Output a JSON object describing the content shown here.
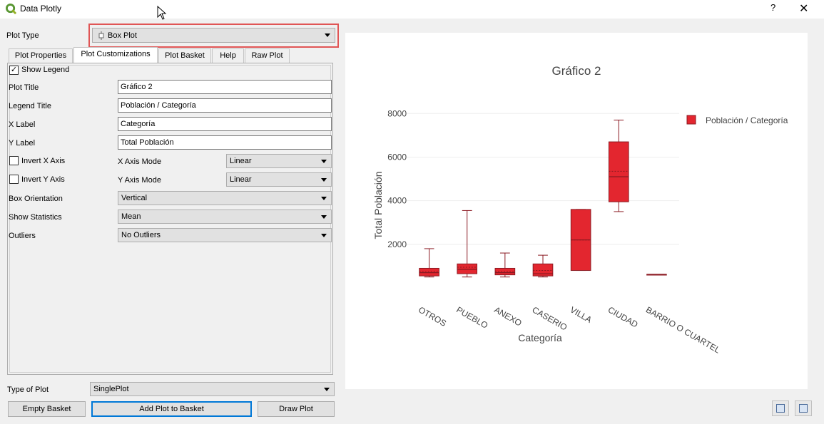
{
  "window": {
    "title": "Data Plotly",
    "help_label": "?",
    "close_label": "✕",
    "app_icon": "qgis-logo-icon"
  },
  "plot_type": {
    "label": "Plot Type",
    "value": "Box Plot",
    "icon": "box-plot-icon"
  },
  "tabs": [
    {
      "label": "Plot Properties"
    },
    {
      "label": "Plot Customizations"
    },
    {
      "label": "Plot Basket"
    },
    {
      "label": "Help"
    },
    {
      "label": "Raw Plot"
    }
  ],
  "form": {
    "show_legend_label": "Show Legend",
    "show_legend_checked": "✓",
    "plot_title_label": "Plot Title",
    "plot_title_value": "Gráfico 2",
    "legend_title_label": "Legend Title",
    "legend_title_value": "Población / Categoría",
    "x_label_label": "X Label",
    "x_label_value": "Categoría",
    "y_label_label": "Y Label",
    "y_label_value": "Total Población",
    "invert_x_label": "Invert X Axis",
    "x_axis_mode_label": "X Axis Mode",
    "x_axis_mode_value": "Linear",
    "invert_y_label": "Invert Y Axis",
    "y_axis_mode_label": "Y Axis Mode",
    "y_axis_mode_value": "Linear",
    "box_orientation_label": "Box Orientation",
    "box_orientation_value": "Vertical",
    "show_statistics_label": "Show Statistics",
    "show_statistics_value": "Mean",
    "outliers_label": "Outliers",
    "outliers_value": "No Outliers"
  },
  "bottom": {
    "type_of_plot_label": "Type of Plot",
    "type_of_plot_value": "SinglePlot",
    "empty_basket": "Empty Basket",
    "add_plot": "Add Plot to Basket",
    "draw_plot": "Draw Plot"
  },
  "colors": {
    "box_fill": "#e3262f",
    "box_line": "#8b1a22"
  },
  "chart_data": {
    "type": "box",
    "title": "Gráfico 2",
    "xlabel": "Categoría",
    "ylabel": "Total Población",
    "ylim": [
      0,
      8500
    ],
    "yticks": [
      2000,
      4000,
      6000,
      8000
    ],
    "legend": {
      "entries": [
        "Población / Categoría"
      ],
      "placement": "top-right"
    },
    "grid": true,
    "categories": [
      "OTROS",
      "PUEBLO",
      "ANEXO",
      "CASERIO",
      "VILLA",
      "CIUDAD",
      "BARRIO O CUARTEL"
    ],
    "series": [
      {
        "name": "Población / Categoría",
        "boxes": [
          {
            "min": 500,
            "q1": 550,
            "median": 700,
            "mean": 750,
            "q3": 900,
            "max": 1800
          },
          {
            "min": 500,
            "q1": 650,
            "median": 850,
            "mean": 950,
            "q3": 1100,
            "max": 3550
          },
          {
            "min": 500,
            "q1": 600,
            "median": 700,
            "mean": 750,
            "q3": 900,
            "max": 1600
          },
          {
            "min": 500,
            "q1": 550,
            "median": 650,
            "mean": 800,
            "q3": 1100,
            "max": 1500
          },
          {
            "min": 800,
            "q1": 800,
            "median": 2200,
            "mean": 2200,
            "q3": 3600,
            "max": 3600
          },
          {
            "min": 3500,
            "q1": 3950,
            "median": 5100,
            "mean": 5350,
            "q3": 6700,
            "max": 7700
          },
          {
            "min": 620,
            "q1": 620,
            "median": 620,
            "mean": 620,
            "q3": 620,
            "max": 620
          }
        ]
      }
    ]
  }
}
